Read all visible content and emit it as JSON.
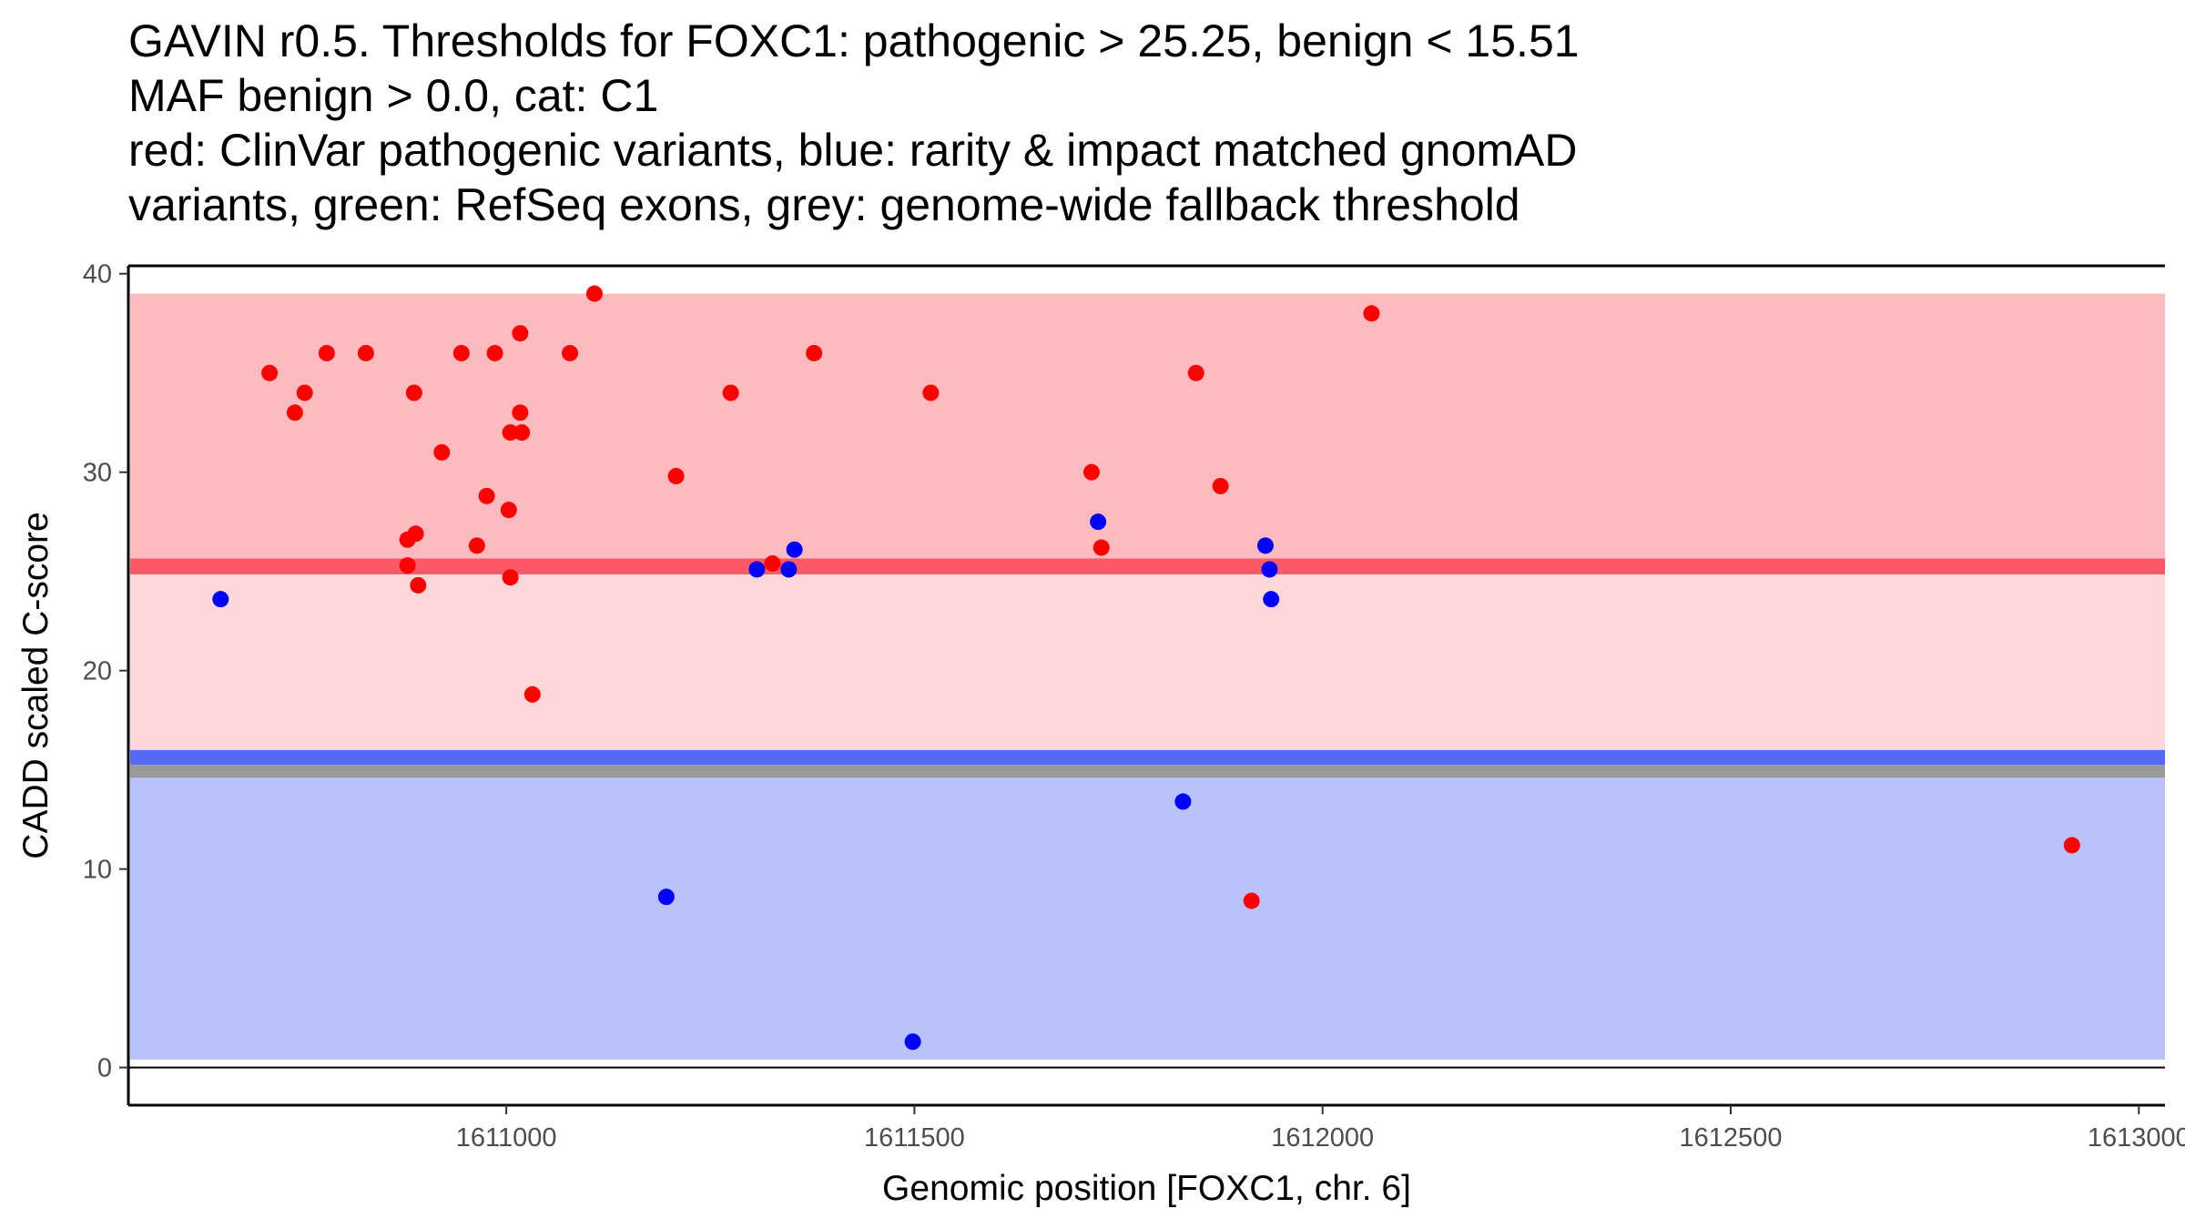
{
  "chart_data": {
    "type": "scatter",
    "title_lines": [
      "GAVIN r0.5. Thresholds for FOXC1: pathogenic > 25.25, benign < 15.51",
      "MAF benign > 0.0, cat: C1",
      "red: ClinVar pathogenic variants, blue: rarity & impact matched gnomAD",
      "variants, green: RefSeq exons, grey: genome-wide fallback threshold"
    ],
    "xlabel": "Genomic position [FOXC1, chr. 6]",
    "ylabel": "CADD scaled C-score",
    "xlim": [
      1610537,
      1613032
    ],
    "ylim": [
      -1.9,
      40.4
    ],
    "x_ticks": [
      1611000,
      1611500,
      1612000,
      1612500,
      1613000
    ],
    "x_tick_labels": [
      "1611000",
      "1611500",
      "1612000",
      "1612500",
      "1613000"
    ],
    "y_ticks": [
      0,
      10,
      20,
      30,
      40
    ],
    "y_tick_labels": [
      "0",
      "10",
      "20",
      "30",
      "40"
    ],
    "grid": false,
    "legend": "none (described in title)",
    "bands": [
      {
        "name": "pathogenic-region",
        "ymin": 25.25,
        "ymax": 39.0,
        "color": "#FDBBC0"
      },
      {
        "name": "intermediate-region",
        "ymin": 15.51,
        "ymax": 25.25,
        "color": "#FFD7DB"
      },
      {
        "name": "benign-region",
        "ymin": 0.4,
        "ymax": 14.6,
        "color": "#BBC1FB"
      },
      {
        "name": "pathogenic-threshold",
        "ymin": 24.85,
        "ymax": 25.65,
        "color": "#FC5A66"
      },
      {
        "name": "benign-threshold",
        "ymin": 15.25,
        "ymax": 16.0,
        "color": "#5469F4"
      },
      {
        "name": "genome-wide-fallback-threshold",
        "ymin": 14.6,
        "ymax": 15.25,
        "color": "#999999"
      }
    ],
    "series": [
      {
        "name": "ClinVar pathogenic variants",
        "color": "#FF0000",
        "points": [
          [
            1610710,
            35
          ],
          [
            1610741,
            33
          ],
          [
            1610753,
            34
          ],
          [
            1610780,
            36
          ],
          [
            1610828,
            36
          ],
          [
            1610879,
            26.6
          ],
          [
            1610889,
            26.9
          ],
          [
            1610879,
            25.3
          ],
          [
            1610887,
            34
          ],
          [
            1610892,
            24.3
          ],
          [
            1610921,
            31
          ],
          [
            1610945,
            36
          ],
          [
            1610964,
            26.3
          ],
          [
            1610976,
            28.8
          ],
          [
            1610986,
            36
          ],
          [
            1611005,
            32
          ],
          [
            1611003,
            28.1
          ],
          [
            1611005,
            24.7
          ],
          [
            1611017,
            33
          ],
          [
            1611017,
            37
          ],
          [
            1611019,
            32
          ],
          [
            1611032,
            18.8
          ],
          [
            1611078,
            36
          ],
          [
            1611108,
            39
          ],
          [
            1611208,
            29.8
          ],
          [
            1611275,
            34
          ],
          [
            1611326,
            25.4
          ],
          [
            1611377,
            36
          ],
          [
            1611520,
            34
          ],
          [
            1611717,
            30
          ],
          [
            1611729,
            26.2
          ],
          [
            1611845,
            35
          ],
          [
            1611875,
            29.3
          ],
          [
            1611913,
            8.4
          ],
          [
            1612060,
            38
          ],
          [
            1612918,
            11.2
          ]
        ]
      },
      {
        "name": "rarity & impact matched gnomAD variants",
        "color": "#0000FF",
        "points": [
          [
            1610650,
            23.6
          ],
          [
            1611196,
            8.6
          ],
          [
            1611307,
            25.1
          ],
          [
            1611346,
            25.1
          ],
          [
            1611353,
            26.1
          ],
          [
            1611498,
            1.3
          ],
          [
            1611725,
            27.5
          ],
          [
            1611829,
            13.4
          ],
          [
            1611930,
            26.3
          ],
          [
            1611935,
            25.1
          ],
          [
            1611937,
            23.6
          ]
        ]
      }
    ]
  }
}
